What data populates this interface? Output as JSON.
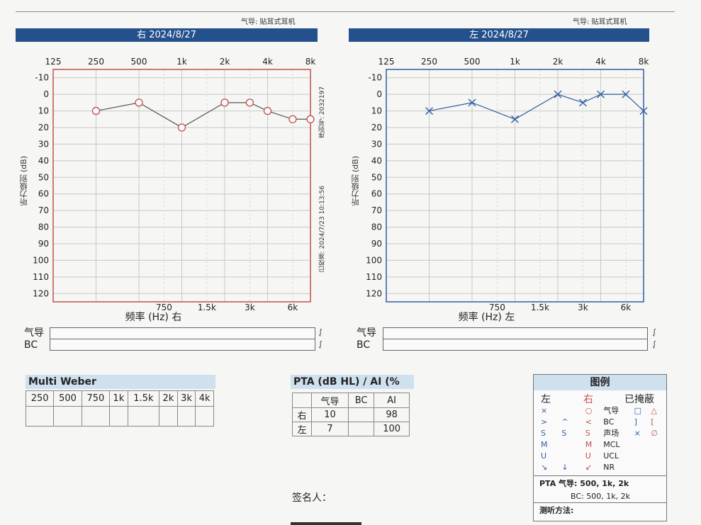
{
  "header": {
    "mode_label_right": "气导: 贴耳式耳机",
    "mode_label_left": "气导: 贴耳式耳机"
  },
  "chart_data": [
    {
      "type": "line",
      "title": "右 2024/8/27",
      "color": "#c0504d",
      "marker": "circle",
      "x_top_ticks": [
        "125",
        "250",
        "500",
        "1k",
        "2k",
        "4k",
        "8k"
      ],
      "x_bottom_ticks": [
        "750",
        "1.5k",
        "3k",
        "6k"
      ],
      "xlabel": "频率 (Hz) 右",
      "ylabel": "听力级别 (dB)",
      "y_ticks": [
        "-10",
        "0",
        "10",
        "20",
        "30",
        "40",
        "50",
        "60",
        "70",
        "80",
        "90",
        "100",
        "110",
        "120"
      ],
      "ylim": [
        -15,
        125
      ],
      "x": [
        "250",
        "500",
        "1k",
        "2k",
        "3k",
        "4k",
        "6k",
        "8k"
      ],
      "values": [
        10,
        5,
        20,
        5,
        5,
        10,
        15,
        15
      ],
      "side_text_1": "序列号: 2032197",
      "side_text_2": "已校准: 2024/7/23 10:13:56"
    },
    {
      "type": "line",
      "title": "左 2024/8/27",
      "color": "#2f5fa0",
      "marker": "x",
      "x_top_ticks": [
        "125",
        "250",
        "500",
        "1k",
        "2k",
        "4k",
        "8k"
      ],
      "x_bottom_ticks": [
        "750",
        "1.5k",
        "3k",
        "6k"
      ],
      "xlabel": "频率 (Hz) 左",
      "ylabel": "听力级别 (dB)",
      "y_ticks": [
        "-10",
        "0",
        "10",
        "20",
        "30",
        "40",
        "50",
        "60",
        "70",
        "80",
        "90",
        "100",
        "110",
        "120"
      ],
      "ylim": [
        -15,
        125
      ],
      "x": [
        "250",
        "500",
        "1k",
        "2k",
        "3k",
        "4k",
        "6k",
        "8k"
      ],
      "values": [
        10,
        5,
        15,
        0,
        5,
        0,
        0,
        10
      ]
    }
  ],
  "rows": {
    "air": "气导",
    "bc": "BC"
  },
  "weber": {
    "title": "Multi Weber",
    "headers": [
      "250",
      "500",
      "750",
      "1k",
      "1.5k",
      "2k",
      "3k",
      "4k"
    ]
  },
  "pta": {
    "title": "PTA (dB HL) / AI (%",
    "headers": [
      "",
      "气导",
      "BC",
      "AI"
    ],
    "rows": [
      [
        "右",
        "10",
        "",
        "98"
      ],
      [
        "左",
        "7",
        "",
        "100"
      ]
    ]
  },
  "signature": "签名人：",
  "legend": {
    "title": "图例",
    "col_left": "左",
    "col_right": "右",
    "col_masked": "已掩蔽",
    "rows": [
      [
        "×",
        "",
        "○",
        "气导",
        "□",
        "△"
      ],
      [
        ">",
        "^",
        "<",
        "BC",
        "]",
        "["
      ],
      [
        "S",
        "S",
        "S",
        "声场",
        "⨯",
        "∅"
      ],
      [
        "M",
        "",
        "M",
        "MCL",
        "",
        ""
      ],
      [
        "U",
        "",
        "U",
        "UCL",
        "",
        ""
      ],
      [
        "↘",
        "↓",
        "↙",
        "NR",
        "",
        ""
      ]
    ],
    "pta_line1": "PTA 气导: 500, 1k, 2k",
    "pta_line2": "BC: 500, 1k, 2k",
    "method": "测听方法:"
  }
}
